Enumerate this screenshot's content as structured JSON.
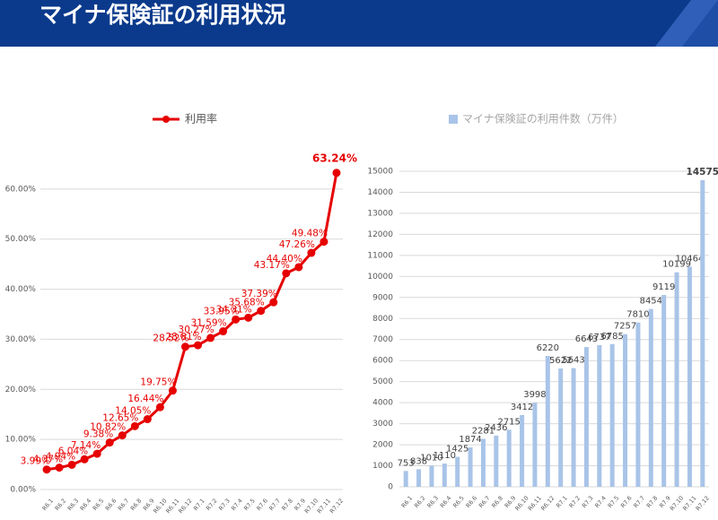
{
  "title": "マイナ保険証の利用状況",
  "chart_data": [
    {
      "type": "line",
      "categories": [
        "R6.1",
        "R6.2",
        "R6.3",
        "R6.4",
        "R6.5",
        "R6.6",
        "R6.7",
        "R6.8",
        "R6.9",
        "R6.10",
        "R6.11",
        "R6.12",
        "R7.1",
        "R7.2",
        "R7.3",
        "R7.4",
        "R7.5",
        "R7.6",
        "R7.7",
        "R7.8",
        "R7.9",
        "R7.10",
        "R7.11",
        "R7.12"
      ],
      "series": [
        {
          "name": "利用率",
          "color": "#e60000",
          "values": [
            3.99,
            4.37,
            4.94,
            6.04,
            7.14,
            9.38,
            10.82,
            12.65,
            14.05,
            16.44,
            19.75,
            28.52,
            28.81,
            30.27,
            31.59,
            33.95,
            34.31,
            35.68,
            37.39,
            43.17,
            44.4,
            47.26,
            49.48,
            63.24
          ],
          "value_labels": [
            "3.99%",
            "4.37%",
            "4.94%",
            "6.04%",
            "7.14%",
            "9.38%",
            "10.82%",
            "12.65%",
            "14.05%",
            "16.44%",
            "19.75%",
            "28.52%",
            "28.81%",
            "30.27%",
            "31.59%",
            "33.95%",
            "34.31%",
            "35.68%",
            "37.39%",
            "43.17%",
            "44.40%",
            "47.26%",
            "49.48%",
            "63.24%"
          ]
        }
      ],
      "ylim": [
        0,
        70
      ],
      "yticks": [
        {
          "value": 0,
          "label": "0.00%"
        },
        {
          "value": 10,
          "label": "10.00%"
        },
        {
          "value": 20,
          "label": "20.00%"
        },
        {
          "value": 30,
          "label": "30.00%"
        },
        {
          "value": 40,
          "label": "40.00%"
        },
        {
          "value": 50,
          "label": "50.00%"
        },
        {
          "value": 60,
          "label": "60.00%"
        }
      ],
      "grid": true
    },
    {
      "type": "bar",
      "categories": [
        "R6.1",
        "R6.2",
        "R6.3",
        "R6.4",
        "R6.5",
        "R6.6",
        "R6.7",
        "R6.8",
        "R6.9",
        "R6.10",
        "R6.11",
        "R6.12",
        "R7.1",
        "R7.2",
        "R7.3",
        "R7.4",
        "R7.5",
        "R7.6",
        "R7.7",
        "R7.8",
        "R7.9",
        "R7.10",
        "R7.11",
        "R7.12"
      ],
      "series": [
        {
          "name": "マイナ保険証の利用件数（万件）",
          "color": "#a9c4e8",
          "values": [
            753,
            838,
            1010,
            1110,
            1425,
            1874,
            2281,
            2436,
            2715,
            3412,
            3998,
            6220,
            5622,
            5643,
            6643,
            6737,
            6785,
            7257,
            7810,
            8454,
            9119,
            10199,
            10464,
            14575
          ]
        }
      ],
      "ylim": [
        0,
        15000
      ],
      "yticks": [
        0,
        1000,
        2000,
        3000,
        4000,
        5000,
        6000,
        7000,
        8000,
        9000,
        10000,
        11000,
        12000,
        13000,
        14000,
        15000
      ],
      "grid": true
    }
  ]
}
